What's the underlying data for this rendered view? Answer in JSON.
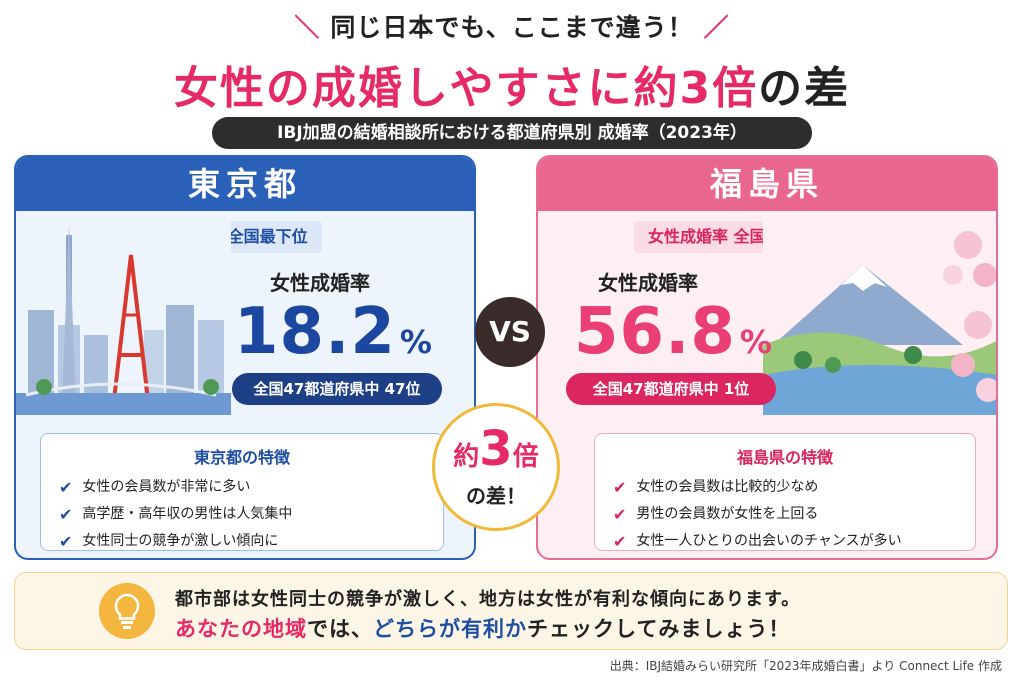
{
  "header": {
    "tagline": "同じ日本でも、ここまで違う！",
    "headline_part1": "女性の成婚しやすさに",
    "headline_part2": "約3倍",
    "headline_part3": "の差",
    "subtitle": "IBJ加盟の結婚相談所における都道府県別 成婚率（2023年）"
  },
  "left": {
    "name": "東京都",
    "rank_label": "女性成婚率 全国最下位",
    "rate_title": "女性成婚率",
    "rate_value": "18.2",
    "rate_unit": "%",
    "rank_pill": "全国47都道府県中 47位",
    "features_title": "東京都の特徴",
    "features": [
      "女性の会員数が非常に多い",
      "高学歴・高年収の男性は人気集中",
      "女性同士の競争が激しい傾向に"
    ],
    "accent": "#2b60b8"
  },
  "right": {
    "name": "福島県",
    "rank_label": "女性成婚率 全国トップ",
    "rate_title": "女性成婚率",
    "rate_value": "56.8",
    "rate_unit": "%",
    "rank_pill": "全国47都道府県中 1位",
    "features_title": "福島県の特徴",
    "features": [
      "女性の会員数は比較的少なめ",
      "男性の会員数が女性を上回る",
      "女性一人ひとりの出会いのチャンスが多い"
    ],
    "accent": "#e9678f"
  },
  "center": {
    "vs": "VS",
    "diff_prefix": "約",
    "diff_number": "3",
    "diff_suffix": "倍",
    "diff_bottom": "の差！"
  },
  "tip": {
    "line1": "都市部は女性同士の競争が激しく、地方は女性が有利な傾向にあります。",
    "line2_a": "あなたの地域",
    "line2_b": "では、",
    "line2_c": "どちらが有利か",
    "line2_d": "チェックしてみましょう！"
  },
  "source": "出典：IBJ結婚みらい研究所「2023年成婚白書」より Connect Life 作成",
  "icons": [
    "check-icon",
    "lightbulb-icon",
    "tokyo-skyline-icon",
    "mount-fuji-icon"
  ]
}
